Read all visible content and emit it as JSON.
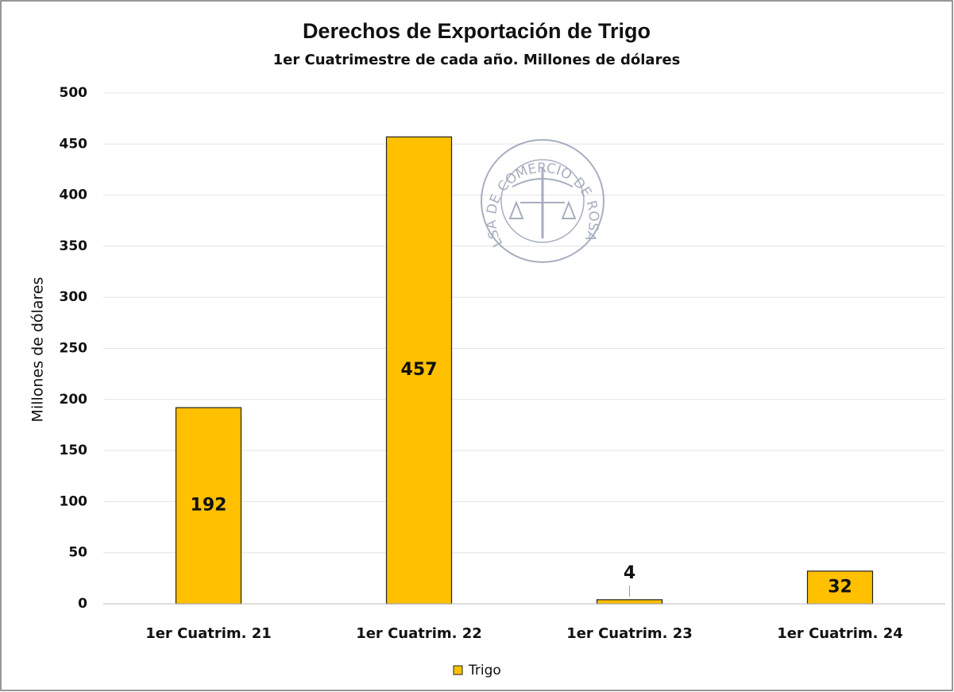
{
  "chart_data": {
    "type": "bar",
    "title": "Derechos de Exportación de Trigo",
    "subtitle": "1er Cuatrimestre  de cada año. Millones de dólares",
    "ylabel": "Millones de dólares",
    "categories": [
      "1er Cuatrim. 21",
      "1er Cuatrim. 22",
      "1er Cuatrim. 23",
      "1er Cuatrim. 24"
    ],
    "series": [
      {
        "name": "Trigo",
        "color": "#ffc000",
        "values": [
          192,
          457,
          4,
          32
        ]
      }
    ],
    "ylim": [
      0,
      500
    ],
    "yticks": [
      0,
      50,
      100,
      150,
      200,
      250,
      300,
      350,
      400,
      450,
      500
    ],
    "grid": true,
    "legend": "bottom",
    "watermark": "BOLSA DE COMERCIO DE ROSARIO"
  }
}
